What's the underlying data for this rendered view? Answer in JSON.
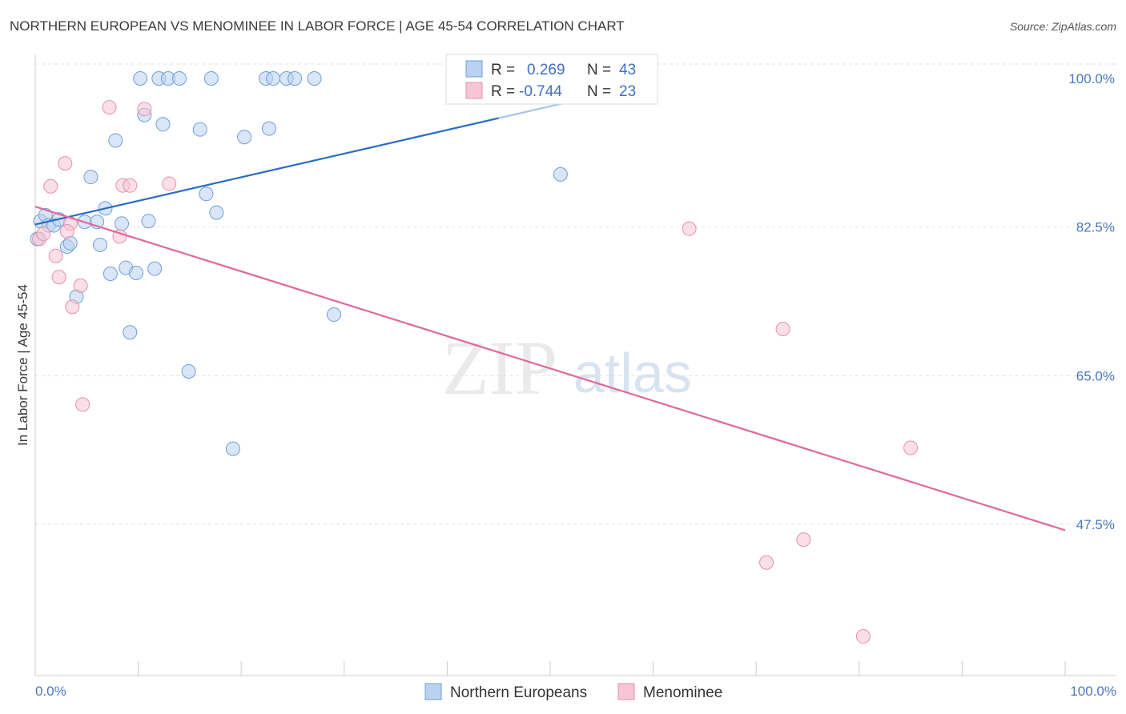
{
  "chart_data": {
    "type": "scatter",
    "title": "NORTHERN EUROPEAN VS MENOMINEE IN LABOR FORCE | AGE 45-54 CORRELATION CHART",
    "source": "Source: ZipAtlas.com",
    "xlabel": "",
    "ylabel": "In Labor Force | Age 45-54",
    "xlim": [
      0,
      100
    ],
    "ylim": [
      31.5,
      101.5
    ],
    "x_tick_labels": [
      "0.0%",
      "100.0%"
    ],
    "y_ticks": [
      {
        "value": 100.0,
        "label": "100.0%"
      },
      {
        "value": 82.5,
        "label": "82.5%"
      },
      {
        "value": 65.0,
        "label": "65.0%"
      },
      {
        "value": 47.5,
        "label": "47.5%"
      }
    ],
    "grid": true,
    "watermark": {
      "part1": "ZIP",
      "part2": "atlas"
    },
    "legend": {
      "rows": [
        {
          "r_label": "R =",
          "r_value": "0.269",
          "n_label": "N =",
          "n_value": "43"
        },
        {
          "r_label": "R =",
          "r_value": "-0.744",
          "n_label": "N =",
          "n_value": "23"
        }
      ]
    },
    "series": [
      {
        "name": "Northern Europeans",
        "color": "#6f9fd8",
        "fill": "#b9d2f1",
        "line_color": "#2b6cc4",
        "trend": {
          "x0": 0,
          "y0": 82.8,
          "x1": 60,
          "y1": 99.5,
          "dash_from_x": 45,
          "dash_to_x": 60
        },
        "points": [
          [
            0.2,
            81.1
          ],
          [
            0.5,
            83.2
          ],
          [
            1.0,
            83.9
          ],
          [
            1.3,
            82.7
          ],
          [
            1.8,
            82.7
          ],
          [
            2.3,
            83.4
          ],
          [
            3.1,
            80.2
          ],
          [
            3.4,
            80.6
          ],
          [
            4.0,
            74.3
          ],
          [
            4.8,
            83.1
          ],
          [
            5.4,
            88.4
          ],
          [
            6.0,
            83.1
          ],
          [
            6.3,
            80.4
          ],
          [
            6.8,
            84.7
          ],
          [
            7.3,
            77.0
          ],
          [
            7.8,
            92.7
          ],
          [
            8.4,
            82.9
          ],
          [
            8.8,
            77.7
          ],
          [
            9.2,
            70.1
          ],
          [
            9.8,
            77.1
          ],
          [
            10.2,
            100.0
          ],
          [
            10.6,
            95.7
          ],
          [
            11.0,
            83.2
          ],
          [
            11.6,
            77.6
          ],
          [
            12.0,
            100.0
          ],
          [
            12.4,
            94.6
          ],
          [
            12.9,
            100.0
          ],
          [
            14.0,
            100.0
          ],
          [
            14.9,
            65.5
          ],
          [
            16.0,
            94.0
          ],
          [
            16.6,
            86.4
          ],
          [
            17.1,
            100.0
          ],
          [
            17.6,
            84.2
          ],
          [
            19.2,
            56.4
          ],
          [
            20.3,
            93.1
          ],
          [
            22.4,
            100.0
          ],
          [
            22.7,
            94.1
          ],
          [
            23.1,
            100.0
          ],
          [
            24.4,
            100.0
          ],
          [
            25.2,
            100.0
          ],
          [
            27.1,
            100.0
          ],
          [
            29.0,
            72.2
          ],
          [
            51.0,
            88.7
          ]
        ]
      },
      {
        "name": "Menominee",
        "color": "#e58fac",
        "fill": "#f7c5d5",
        "line_color": "#e0699a",
        "trend": {
          "x0": 0,
          "y0": 84.9,
          "x1": 100,
          "y1": 46.8
        },
        "points": [
          [
            0.4,
            81.1
          ],
          [
            0.8,
            81.7
          ],
          [
            1.5,
            87.3
          ],
          [
            2.0,
            79.1
          ],
          [
            2.3,
            76.6
          ],
          [
            2.9,
            90.0
          ],
          [
            3.4,
            82.9
          ],
          [
            3.6,
            73.1
          ],
          [
            4.4,
            75.6
          ],
          [
            4.6,
            61.6
          ],
          [
            7.2,
            96.6
          ],
          [
            8.2,
            81.4
          ],
          [
            8.5,
            87.4
          ],
          [
            9.2,
            87.4
          ],
          [
            10.6,
            96.4
          ],
          [
            13.0,
            87.6
          ],
          [
            63.5,
            82.3
          ],
          [
            71.0,
            43.0
          ],
          [
            72.6,
            70.5
          ],
          [
            74.6,
            45.7
          ],
          [
            80.4,
            34.3
          ],
          [
            85.0,
            56.5
          ],
          [
            3.1,
            82.0
          ]
        ]
      }
    ]
  }
}
